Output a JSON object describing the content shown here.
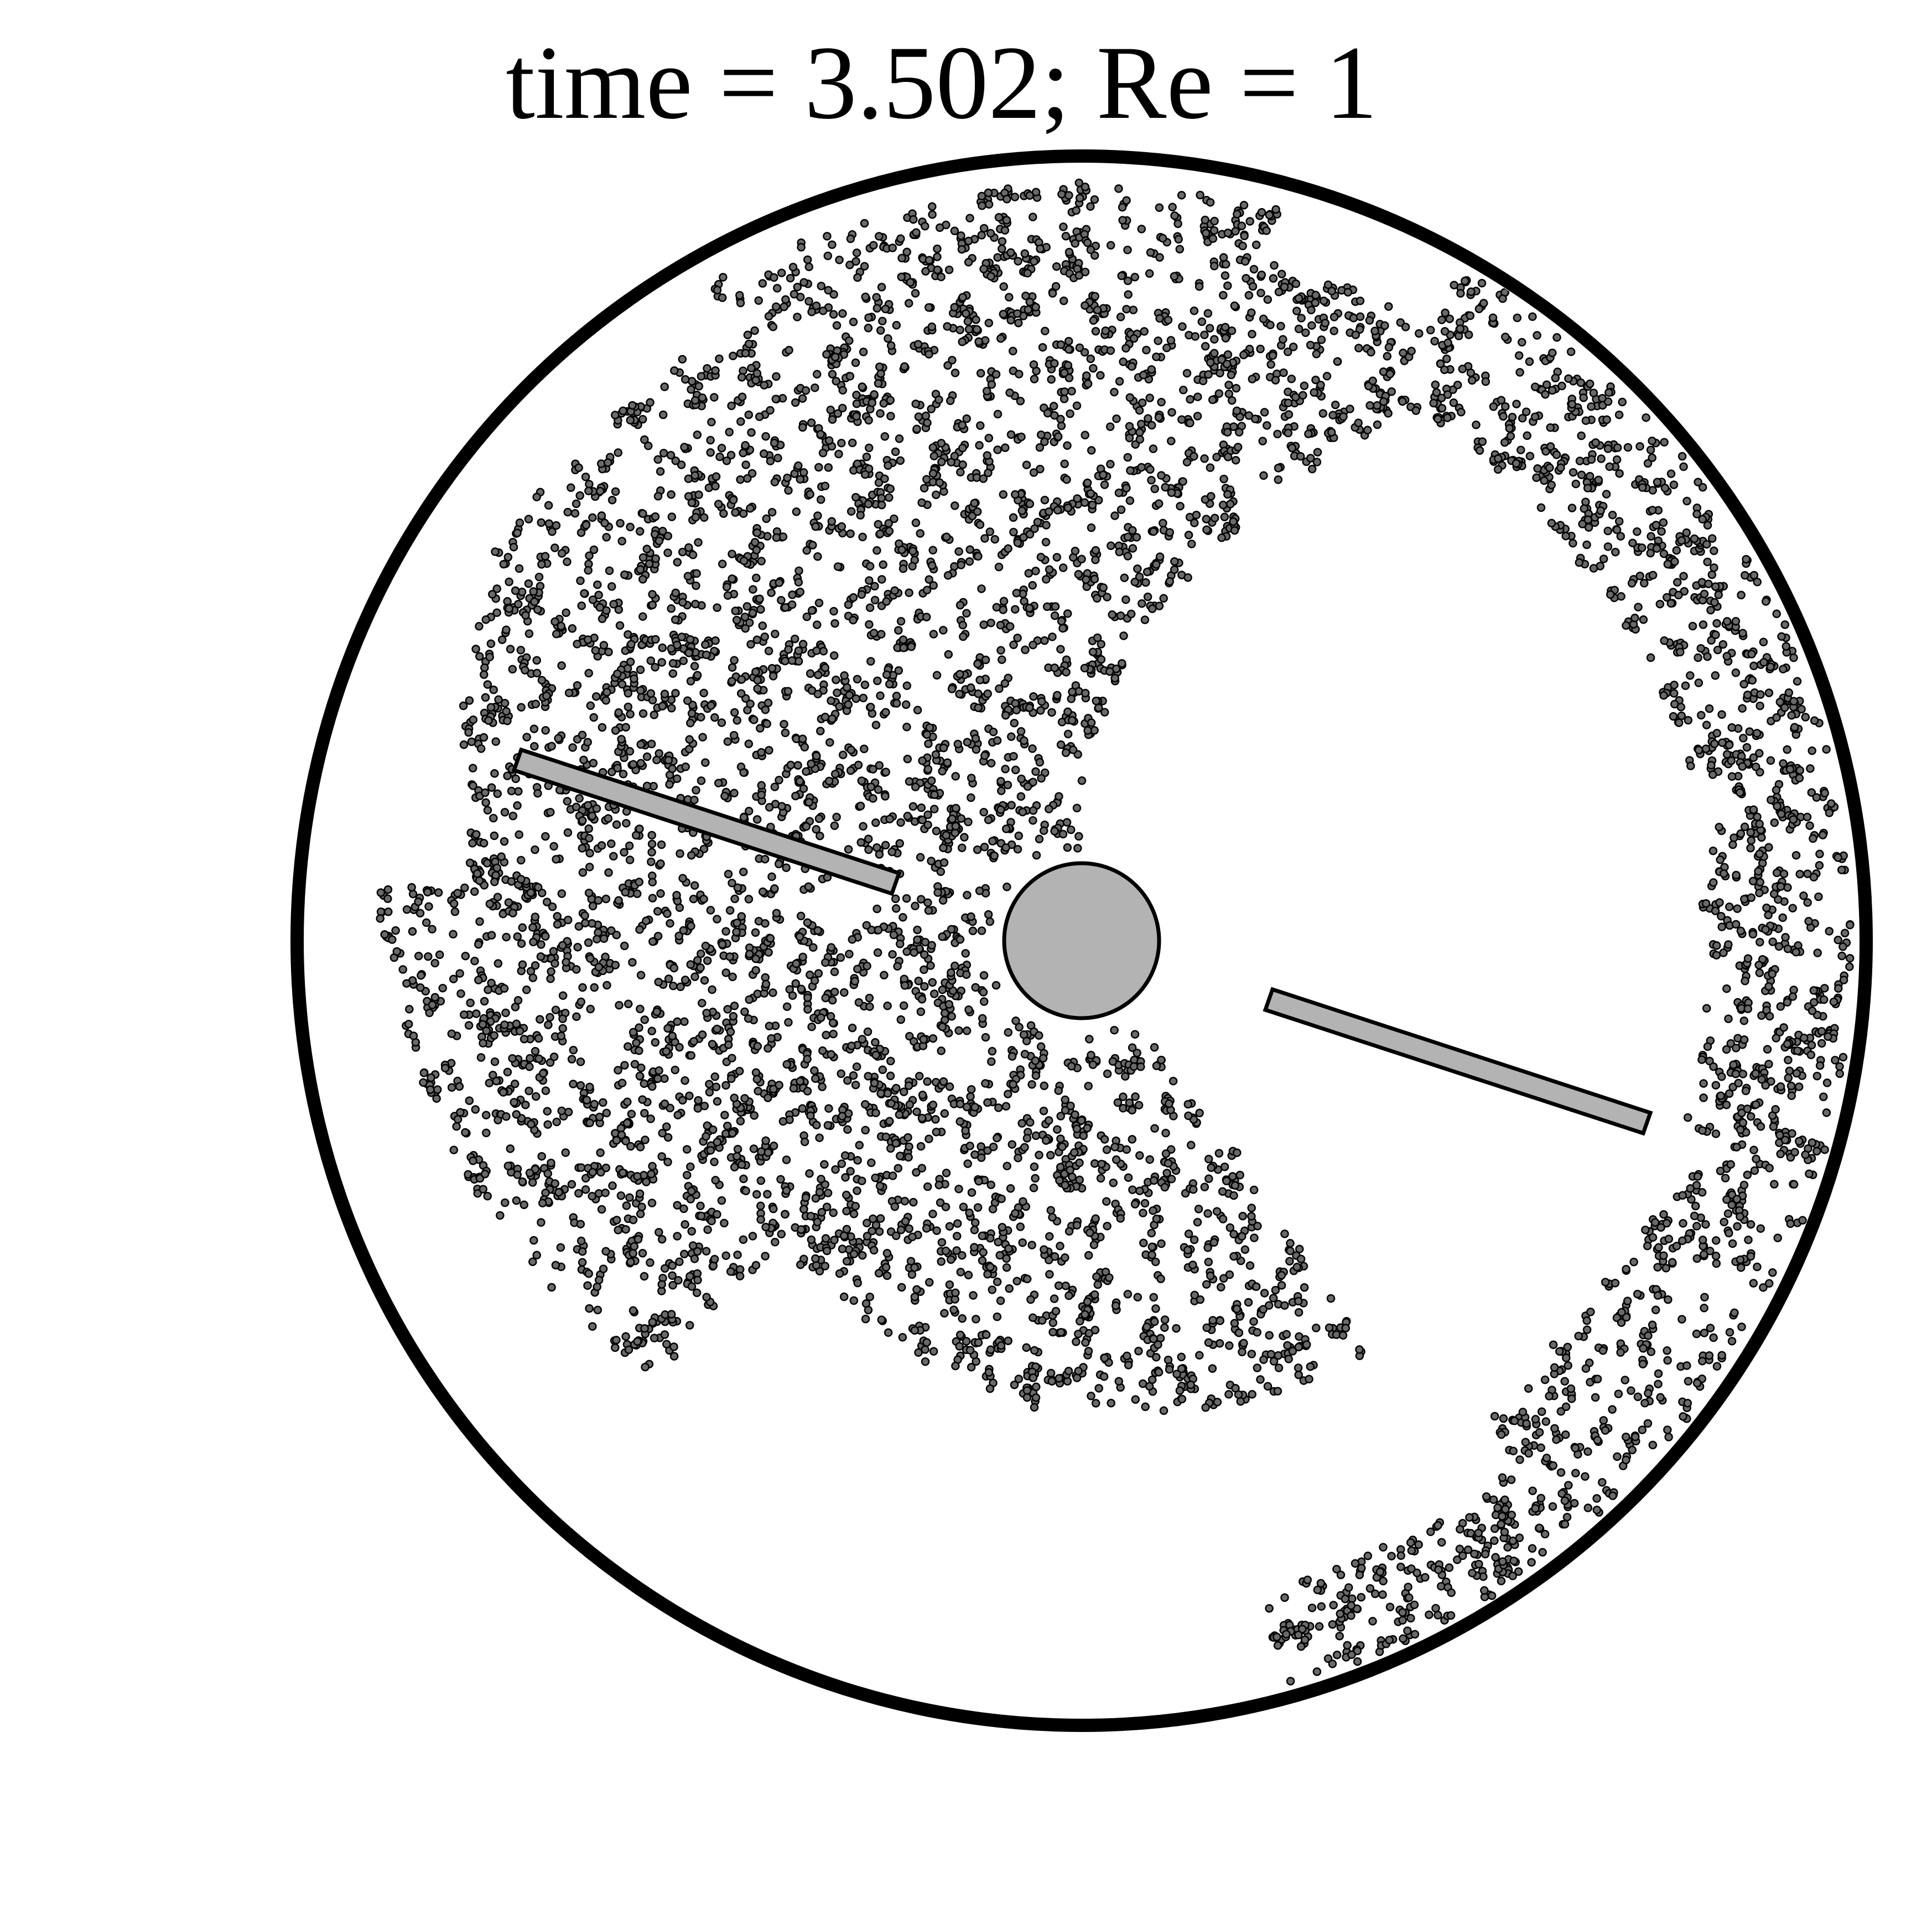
{
  "title": "time = 3.502; Re = 1",
  "colors": {
    "background": "#ffffff",
    "outline": "#000000",
    "solid_fill": "#b3b3b3",
    "particle_fill": "#6a6a6a",
    "particle_edge": "#000000"
  },
  "figure": {
    "container": "circular vessel",
    "center_body": "circular rod",
    "blades": 2,
    "particles": "dispersed tracer particles"
  }
}
